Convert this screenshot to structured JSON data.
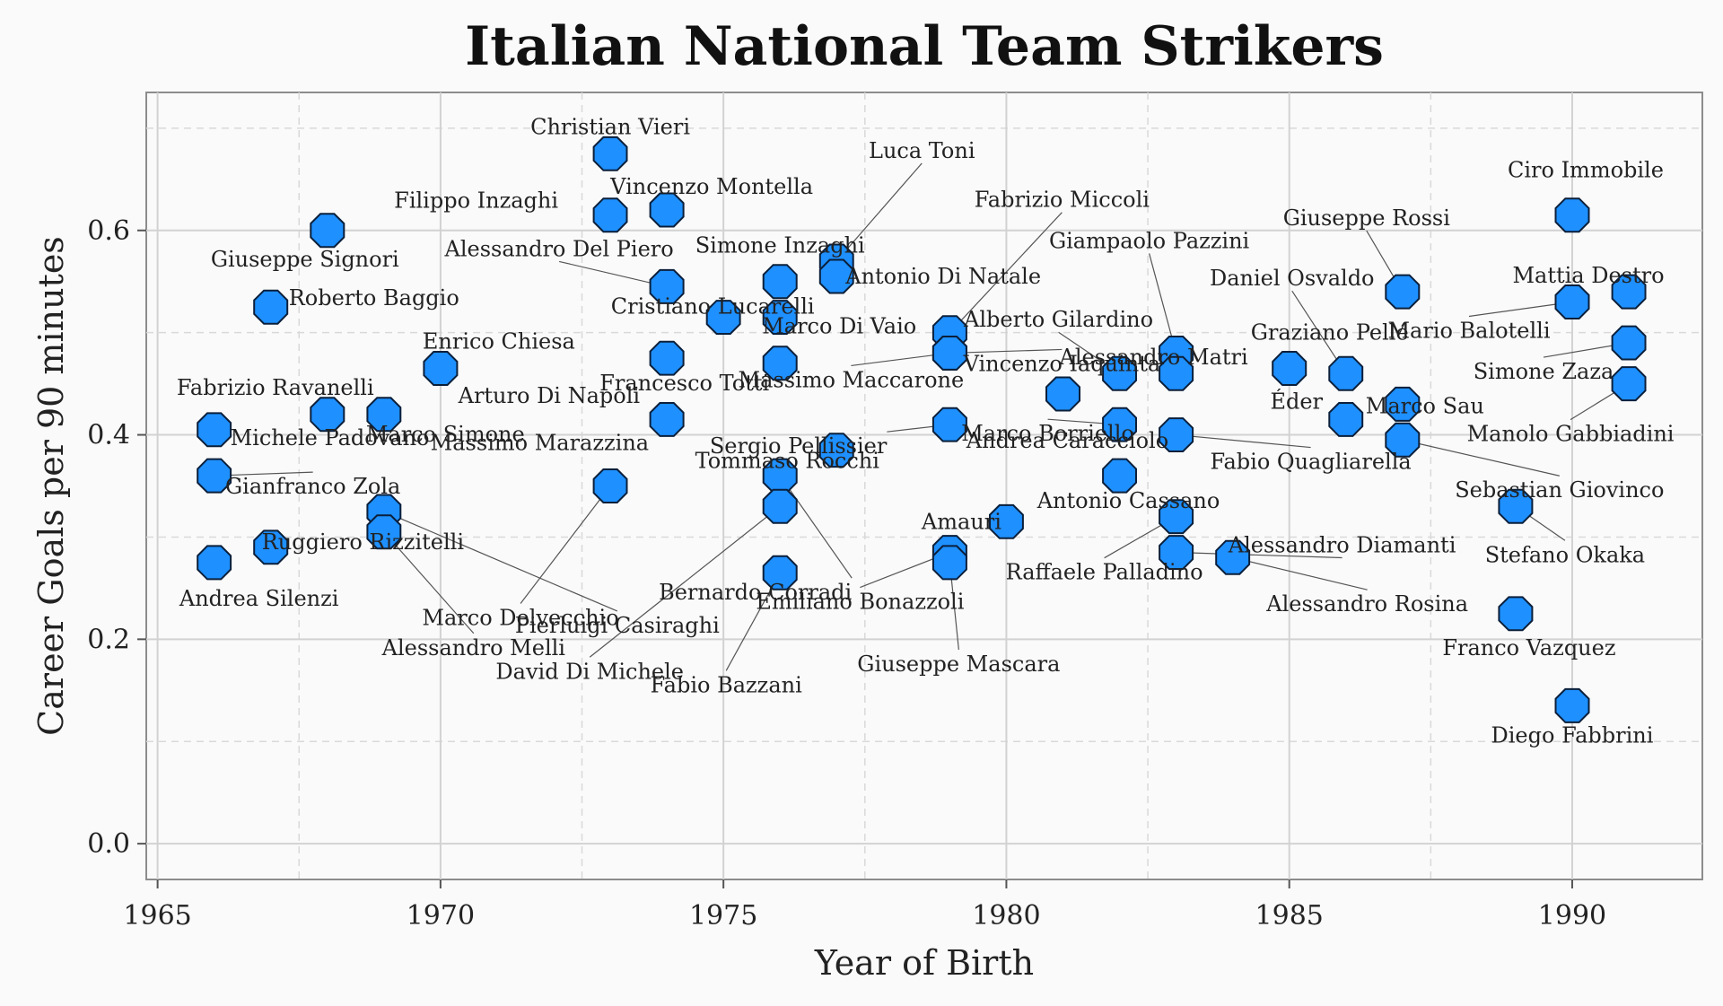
{
  "chart_data": {
    "type": "scatter",
    "title": "Italian National Team Strikers",
    "xlabel": "Year of Birth",
    "ylabel": "Career Goals per 90 minutes",
    "xlim": [
      1964.8,
      1992.3
    ],
    "ylim": [
      -0.035,
      0.735
    ],
    "x_ticks": [
      1965,
      1970,
      1975,
      1980,
      1985,
      1990
    ],
    "y_ticks": [
      0.0,
      0.2,
      0.4,
      0.6
    ],
    "y_tick_labels": [
      "0.0",
      "0.2",
      "0.4",
      "0.6"
    ],
    "grid": true,
    "marker_color": "#1e90ff",
    "points": [
      {
        "name": "Christian Vieri",
        "x": 1973,
        "y": 0.675
      },
      {
        "name": "Filippo Inzaghi",
        "x": 1973,
        "y": 0.615
      },
      {
        "name": "Vincenzo Montella",
        "x": 1974,
        "y": 0.62
      },
      {
        "name": "Giuseppe Signori",
        "x": 1968,
        "y": 0.6
      },
      {
        "name": "Roberto Baggio",
        "x": 1967,
        "y": 0.525
      },
      {
        "name": "Alessandro Del Piero",
        "x": 1974,
        "y": 0.545
      },
      {
        "name": "Luca Toni",
        "x": 1977,
        "y": 0.57
      },
      {
        "name": "Simone Inzaghi",
        "x": 1976,
        "y": 0.55
      },
      {
        "name": "Antonio Di Natale",
        "x": 1977,
        "y": 0.555
      },
      {
        "name": "Cristiano Lucarelli",
        "x": 1975,
        "y": 0.515
      },
      {
        "name": "Marco Di Vaio",
        "x": 1976,
        "y": 0.515
      },
      {
        "name": "Enrico Chiesa",
        "x": 1970,
        "y": 0.465
      },
      {
        "name": "Francesco Totti",
        "x": 1976,
        "y": 0.47
      },
      {
        "name": "Arturo Di Napoli",
        "x": 1974,
        "y": 0.475
      },
      {
        "name": "Fabrizio Ravanelli",
        "x": 1968,
        "y": 0.42
      },
      {
        "name": "Marco Simone",
        "x": 1969,
        "y": 0.42
      },
      {
        "name": "Michele Padovano",
        "x": 1966,
        "y": 0.405
      },
      {
        "name": "Massimo Marazzina",
        "x": 1974,
        "y": 0.415
      },
      {
        "name": "Tommaso Rocchi",
        "x": 1977,
        "y": 0.385
      },
      {
        "name": "Gianfranco Zola",
        "x": 1966,
        "y": 0.36
      },
      {
        "name": "Sergio Pellissier",
        "x": 1979,
        "y": 0.41
      },
      {
        "name": "Bernardo Corradi",
        "x": 1976,
        "y": 0.36
      },
      {
        "name": "Pierluigi Casiraghi",
        "x": 1969,
        "y": 0.325
      },
      {
        "name": "David Di Michele",
        "x": 1976,
        "y": 0.33
      },
      {
        "name": "Marco Delvecchio",
        "x": 1973,
        "y": 0.35
      },
      {
        "name": "Ruggiero Rizzitelli",
        "x": 1967,
        "y": 0.29
      },
      {
        "name": "Andrea Silenzi",
        "x": 1966,
        "y": 0.275
      },
      {
        "name": "Alessandro Melli",
        "x": 1969,
        "y": 0.305
      },
      {
        "name": "Fabio Bazzani",
        "x": 1976,
        "y": 0.265
      },
      {
        "name": "Emiliano Bonazzoli",
        "x": 1979,
        "y": 0.285
      },
      {
        "name": "Giuseppe Mascara",
        "x": 1979,
        "y": 0.275
      },
      {
        "name": "Amauri",
        "x": 1980,
        "y": 0.315
      },
      {
        "name": "Fabrizio Miccoli",
        "x": 1979,
        "y": 0.5
      },
      {
        "name": "Massimo Maccarone",
        "x": 1979,
        "y": 0.48
      },
      {
        "name": "Alberto Gilardino",
        "x": 1982,
        "y": 0.46
      },
      {
        "name": "Vincenzo Iaquinta",
        "x": 1979,
        "y": 0.48
      },
      {
        "name": "Giampaolo Pazzini",
        "x": 1983,
        "y": 0.48
      },
      {
        "name": "Andrea Caracciolo",
        "x": 1981,
        "y": 0.44
      },
      {
        "name": "Alessandro Matri",
        "x": 1983,
        "y": 0.46
      },
      {
        "name": "Graziano Pellé",
        "x": 1985,
        "y": 0.465
      },
      {
        "name": "Éder",
        "x": 1986,
        "y": 0.415
      },
      {
        "name": "Marco Borriello",
        "x": 1982,
        "y": 0.41
      },
      {
        "name": "Fabio Quagliarella",
        "x": 1983,
        "y": 0.4
      },
      {
        "name": "Antonio Cassano",
        "x": 1982,
        "y": 0.36
      },
      {
        "name": "Raffaele Palladino",
        "x": 1983,
        "y": 0.32
      },
      {
        "name": "Alessandro Diamanti",
        "x": 1983,
        "y": 0.285
      },
      {
        "name": "Alessandro Rosina",
        "x": 1984,
        "y": 0.28
      },
      {
        "name": "Daniel Osvaldo",
        "x": 1986,
        "y": 0.46
      },
      {
        "name": "Giuseppe Rossi",
        "x": 1987,
        "y": 0.54
      },
      {
        "name": "Marco Sau",
        "x": 1987,
        "y": 0.43
      },
      {
        "name": "Sebastian Giovinco",
        "x": 1987,
        "y": 0.395
      },
      {
        "name": "Mario Balotelli",
        "x": 1990,
        "y": 0.53
      },
      {
        "name": "Ciro Immobile",
        "x": 1990,
        "y": 0.615
      },
      {
        "name": "Mattia Destro",
        "x": 1991,
        "y": 0.54
      },
      {
        "name": "Simone Zaza",
        "x": 1991,
        "y": 0.49
      },
      {
        "name": "Manolo Gabbiadini",
        "x": 1991,
        "y": 0.45
      },
      {
        "name": "Stefano Okaka",
        "x": 1989,
        "y": 0.33
      },
      {
        "name": "Franco Vazquez",
        "x": 1989,
        "y": 0.225
      },
      {
        "name": "Diego Fabbrini",
        "x": 1990,
        "y": 0.135
      }
    ]
  }
}
